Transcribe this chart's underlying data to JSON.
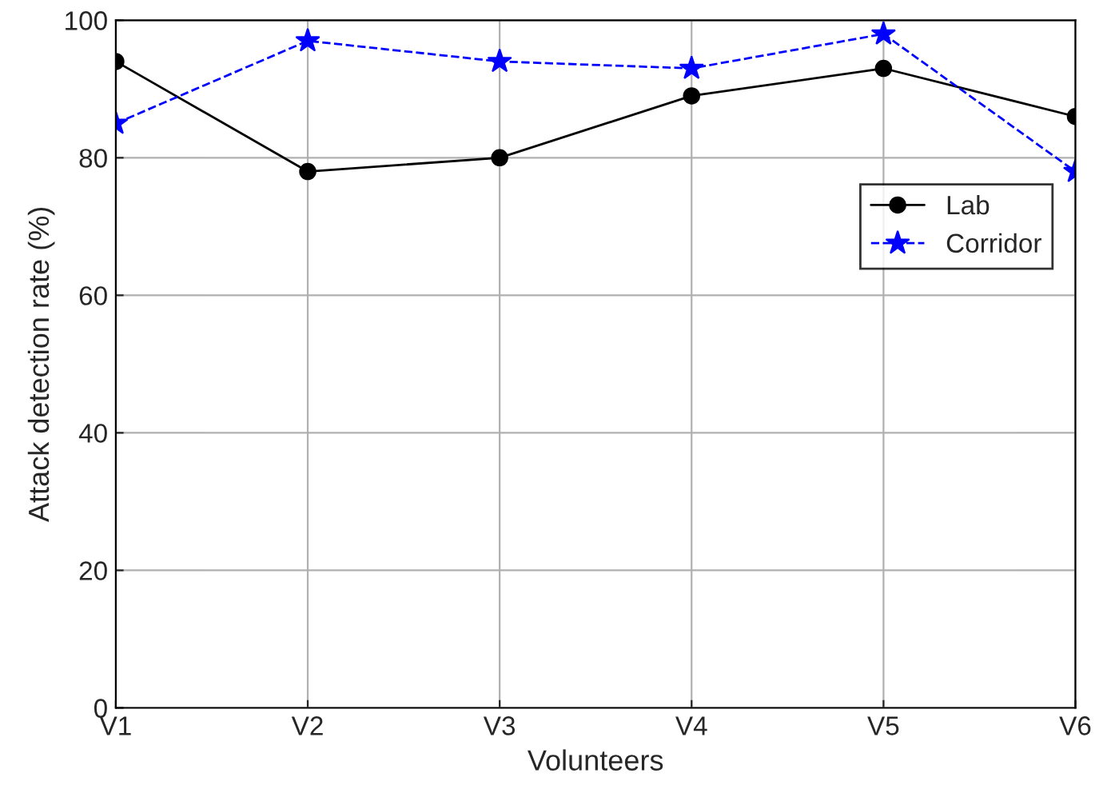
{
  "chart_data": {
    "type": "line",
    "xlabel": "Volunteers",
    "ylabel": "Attack detection rate (%)",
    "categories": [
      "V1",
      "V2",
      "V3",
      "V4",
      "V5",
      "V6"
    ],
    "series": [
      {
        "name": "Lab",
        "color": "#000000",
        "values": [
          94,
          78,
          80,
          89,
          93,
          86
        ],
        "marker": "circle",
        "line_style": "solid"
      },
      {
        "name": "Corridor",
        "color": "#0000ff",
        "values": [
          85,
          97,
          94,
          93,
          98,
          78
        ],
        "marker": "star",
        "line_style": "dashed"
      }
    ],
    "ylim": [
      0,
      100
    ],
    "yticks": [
      0,
      20,
      40,
      60,
      80,
      100
    ],
    "grid": true,
    "legend": "right"
  }
}
